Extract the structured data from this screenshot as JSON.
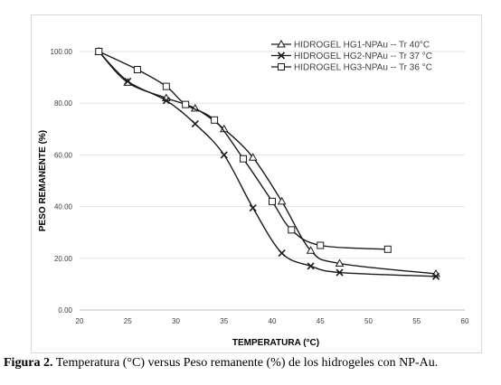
{
  "chart_data": {
    "type": "line",
    "xlabel": "TEMPERATURA (°C)",
    "ylabel": "PESO REMANENTE  (%)",
    "xlim": [
      20,
      60
    ],
    "ylim": [
      0,
      100
    ],
    "x_ticks": [
      "20",
      "25",
      "30",
      "35",
      "40",
      "45",
      "50",
      "55",
      "60"
    ],
    "y_ticks": [
      "0.00",
      "20.00",
      "40.00",
      "60.00",
      "80.00",
      "100.00"
    ],
    "grid": "horizontal",
    "legend_position": "top-right",
    "series": [
      {
        "name": "HIDROGEL HG1-NPAu -- Tr 40°C",
        "marker": "triangle",
        "points": [
          [
            22,
            100
          ],
          [
            25,
            88
          ],
          [
            29,
            82
          ],
          [
            32,
            78
          ],
          [
            35,
            70
          ],
          [
            38,
            59
          ],
          [
            41,
            42
          ],
          [
            44,
            23
          ],
          [
            47,
            18
          ],
          [
            57,
            14
          ]
        ]
      },
      {
        "name": "HIDROGEL HG2-NPAu -- Tr 37 °C",
        "marker": "x",
        "points": [
          [
            22,
            100
          ],
          [
            25,
            88.5
          ],
          [
            29,
            81
          ],
          [
            32,
            72
          ],
          [
            35,
            60
          ],
          [
            38,
            39.5
          ],
          [
            41,
            22
          ],
          [
            44,
            17
          ],
          [
            47,
            14.5
          ],
          [
            57,
            13
          ]
        ]
      },
      {
        "name": "HIDROGEL HG3-NPAu -- Tr 36 °C",
        "marker": "square",
        "points": [
          [
            22,
            100
          ],
          [
            26,
            93
          ],
          [
            29,
            86.5
          ],
          [
            31,
            79.5
          ],
          [
            34,
            73.5
          ],
          [
            37,
            58.5
          ],
          [
            40,
            42
          ],
          [
            42,
            31
          ],
          [
            45,
            25
          ],
          [
            52,
            23.5
          ]
        ]
      }
    ]
  },
  "caption": {
    "label": "Figura 2.",
    "text": " Temperatura (°C) versus Peso remanente (%) de los hidrogeles con NP-Au."
  }
}
